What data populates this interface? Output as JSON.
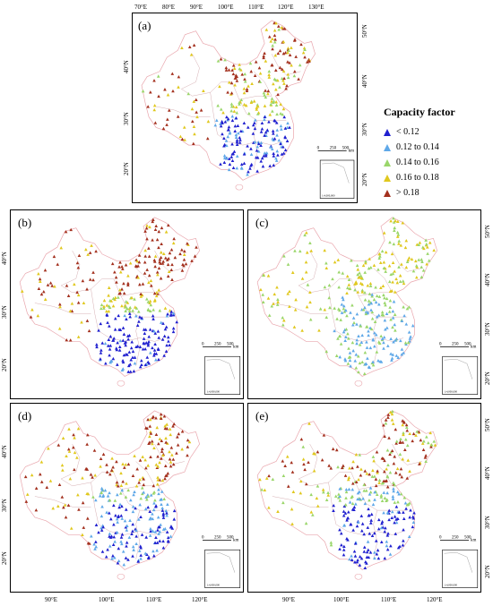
{
  "legend": {
    "title": "Capacity factor",
    "items": [
      {
        "label": "< 0.12",
        "color": "#1f1fcf"
      },
      {
        "label": "0.12 to 0.14",
        "color": "#5fa8e8"
      },
      {
        "label": "0.14 to 0.16",
        "color": "#9ad66a"
      },
      {
        "label": "0.16 to 0.18",
        "color": "#e0c81e"
      },
      {
        "label": "> 0.18",
        "color": "#a3301e"
      }
    ]
  },
  "panels": [
    {
      "label": "(a)",
      "scenario": 0
    },
    {
      "label": "(b)",
      "scenario": 1
    },
    {
      "label": "(c)",
      "scenario": 2
    },
    {
      "label": "(d)",
      "scenario": 3
    },
    {
      "label": "(e)",
      "scenario": 4
    }
  ],
  "axis_top_a": [
    "70°E",
    "80°E",
    "90°E",
    "100°E",
    "110°E",
    "120°E",
    "130°E"
  ],
  "axis_right_a": [
    "50°N",
    "40°N",
    "30°N",
    "20°N"
  ],
  "axis_left_a": [
    "40°N",
    "30°N",
    "20°N"
  ],
  "axis_left_lower": [
    "40°N",
    "30°N",
    "20°N"
  ],
  "axis_right_lower": [
    "50°N",
    "40°N",
    "30°N",
    "20°N"
  ],
  "axis_bottom": [
    "90°E",
    "100°E",
    "110°E",
    "120°E"
  ],
  "scalebar": {
    "ticks": [
      "0",
      "250",
      "500"
    ],
    "unit": "km"
  },
  "inset_note": "1:4,000,000"
}
